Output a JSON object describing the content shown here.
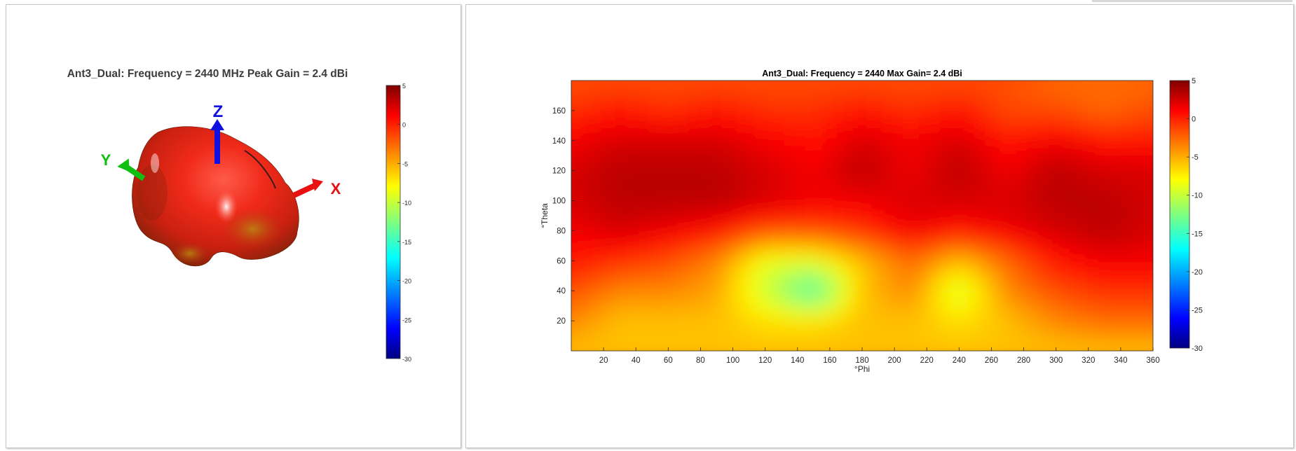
{
  "left_panel": {
    "title": "Ant3_Dual: Frequency = 2440 MHz  Peak Gain = 2.4 dBi",
    "axes": {
      "z": "Z",
      "y": "Y",
      "x": "X"
    },
    "colorbar_ticks": [
      "5",
      "0",
      "-5",
      "-10",
      "-15",
      "-20",
      "-25",
      "-30"
    ]
  },
  "right_panel": {
    "title": "Ant3_Dual: Frequency = 2440  Max Gain= 2.4 dBi",
    "colorbar_ticks": [
      "5",
      "0",
      "-5",
      "-10",
      "-15",
      "-20",
      "-25",
      "-30"
    ]
  },
  "chart_data": [
    {
      "type": "surface-3d",
      "title": "Ant3_Dual: Frequency = 2440 MHz  Peak Gain = 2.4 dBi",
      "frequency_mhz": 2440,
      "peak_gain_dbi": 2.4,
      "axes": [
        "Z",
        "Y",
        "X"
      ],
      "colorbar": {
        "min": -30,
        "max": 5,
        "ticks": [
          5,
          0,
          -5,
          -10,
          -15,
          -20,
          -25,
          -30
        ],
        "colormap": "jet"
      }
    },
    {
      "type": "heatmap",
      "title": "Ant3_Dual: Frequency = 2440  Max Gain= 2.4 dBi",
      "xlabel": "°Phi",
      "ylabel": "°Theta",
      "xlim": [
        0,
        360
      ],
      "ylim": [
        0,
        180
      ],
      "x_ticks": [
        20,
        40,
        60,
        80,
        100,
        120,
        140,
        160,
        180,
        200,
        220,
        240,
        260,
        280,
        300,
        320,
        340,
        360
      ],
      "y_ticks": [
        20,
        40,
        60,
        80,
        100,
        120,
        140,
        160
      ],
      "colorbar": {
        "min": -30,
        "max": 5,
        "ticks": [
          5,
          0,
          -5,
          -10,
          -15,
          -20,
          -25,
          -30
        ],
        "colormap": "jet"
      },
      "x": [
        0,
        30,
        60,
        90,
        120,
        150,
        180,
        210,
        240,
        270,
        300,
        330,
        360
      ],
      "y": [
        0,
        20,
        40,
        60,
        80,
        100,
        120,
        140,
        160,
        180
      ],
      "values": [
        [
          -6,
          -6,
          -6,
          -6,
          -6,
          -6,
          -6,
          -6,
          -6,
          -6,
          -6,
          -6,
          -6
        ],
        [
          -4,
          -6,
          -6,
          -6,
          -7,
          -7,
          -6,
          -6,
          -7,
          -6,
          -4,
          -3,
          -3
        ],
        [
          -2,
          -4,
          -4,
          -5,
          -10,
          -15,
          -6,
          -4,
          -10,
          -4,
          -2,
          -1,
          -1
        ],
        [
          0,
          -1,
          -2,
          -4,
          -9,
          -9,
          -6,
          -3,
          -6,
          -3,
          0,
          1,
          1
        ],
        [
          1,
          2,
          1,
          0,
          -2,
          -2,
          -1,
          1,
          0,
          1,
          2,
          3,
          2
        ],
        [
          2,
          3,
          3,
          3,
          2,
          1,
          1,
          2,
          2,
          2,
          3,
          3,
          2
        ],
        [
          2,
          3,
          3,
          3,
          2,
          1,
          3,
          1,
          3,
          1,
          3,
          2,
          2
        ],
        [
          1,
          2,
          2,
          2,
          1,
          0,
          2,
          1,
          2,
          0,
          1,
          0,
          0
        ],
        [
          -1,
          0,
          -1,
          0,
          -1,
          -1,
          0,
          -1,
          0,
          -2,
          -2,
          -3,
          -2
        ],
        [
          -2,
          -2,
          -2,
          -2,
          -2,
          -2,
          -2,
          -2,
          -2,
          -2,
          -3,
          -3,
          -3
        ]
      ]
    }
  ]
}
